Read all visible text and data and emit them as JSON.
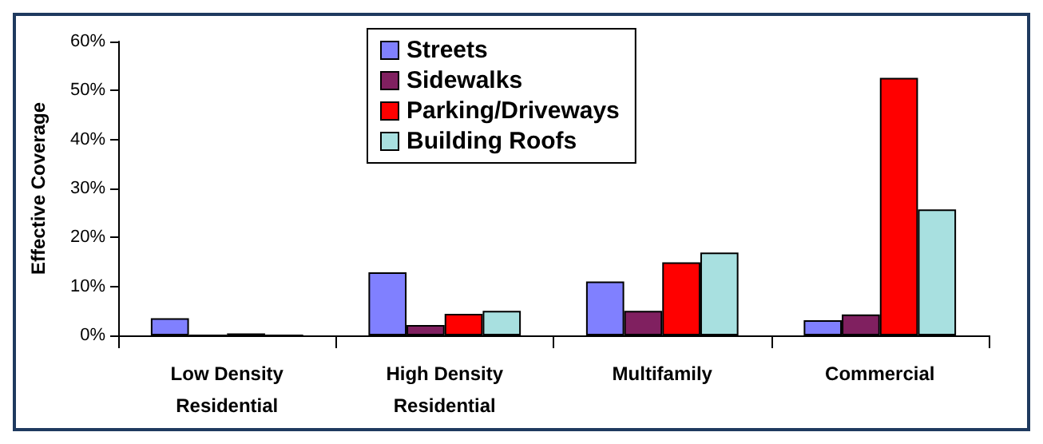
{
  "chart_data": {
    "type": "bar",
    "ylabel": "Effective Coverage",
    "categories": [
      "Low Density\nResidential",
      "High Density\nResidential",
      "Multifamily",
      "Commercial"
    ],
    "series": [
      {
        "name": "Streets",
        "color": "#8080ff",
        "values": [
          3.5,
          12.9,
          11.0,
          3.1
        ]
      },
      {
        "name": "Sidewalks",
        "color": "#802060",
        "values": [
          0,
          2.1,
          5.0,
          4.3
        ]
      },
      {
        "name": "Parking/Driveways",
        "color": "#ff0000",
        "values": [
          0.4,
          4.4,
          14.9,
          52.6
        ]
      },
      {
        "name": "Building Roofs",
        "color": "#a8e0e0",
        "values": [
          0,
          5.0,
          16.9,
          25.7
        ]
      }
    ],
    "ylim": [
      0,
      60
    ],
    "yticks": [
      {
        "value": 0,
        "label": "0%"
      },
      {
        "value": 10,
        "label": "10%"
      },
      {
        "value": 20,
        "label": "20%"
      },
      {
        "value": 30,
        "label": "30%"
      },
      {
        "value": 40,
        "label": "40%"
      },
      {
        "value": 50,
        "label": "50%"
      },
      {
        "value": 60,
        "label": "60%"
      }
    ],
    "grid": false,
    "legend": "top"
  }
}
